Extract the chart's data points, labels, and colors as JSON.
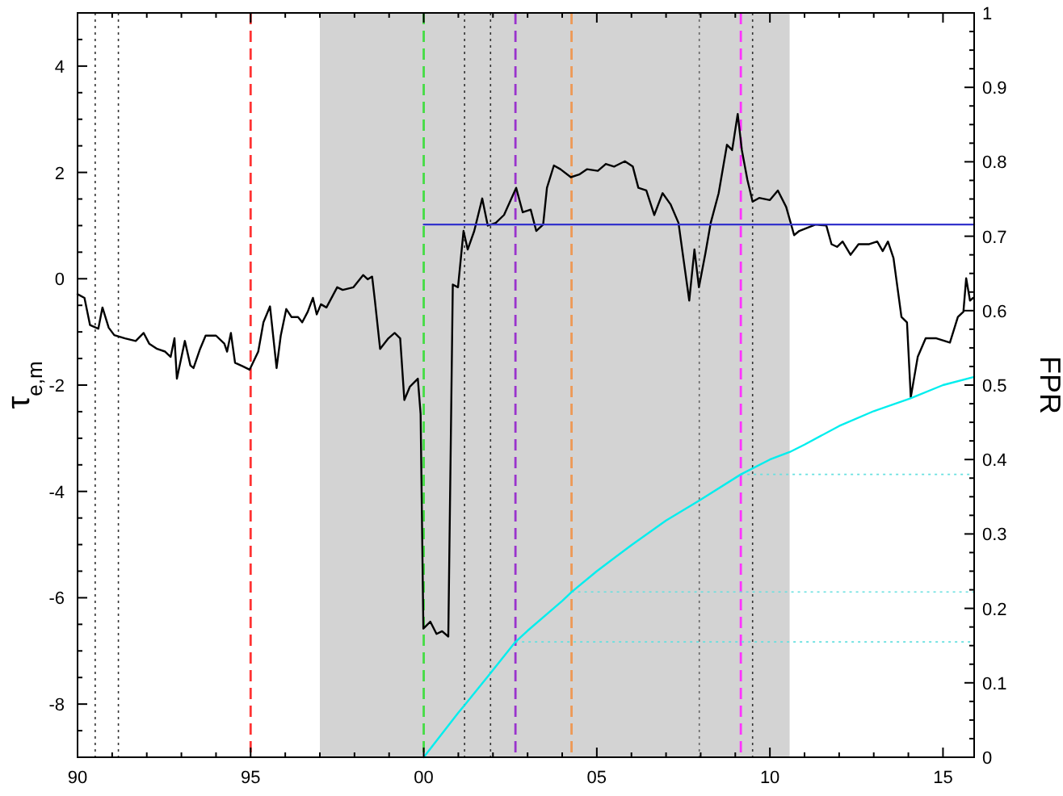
{
  "chart_data": {
    "type": "line",
    "ylabel": "τ$_{e,m}$",
    "y2label": "FPR",
    "xlim": [
      1990,
      2015.9
    ],
    "ylim": [
      -9,
      5
    ],
    "y2lim": [
      0,
      1
    ],
    "xticks": [
      {
        "value": 1990,
        "label": "90"
      },
      {
        "value": 1991,
        "label": null
      },
      {
        "value": 1992,
        "label": null
      },
      {
        "value": 1993,
        "label": null
      },
      {
        "value": 1994,
        "label": null
      },
      {
        "value": 1995,
        "label": "95"
      },
      {
        "value": 1996,
        "label": null
      },
      {
        "value": 1997,
        "label": null
      },
      {
        "value": 1998,
        "label": null
      },
      {
        "value": 1999,
        "label": null
      },
      {
        "value": 2000,
        "label": "00"
      },
      {
        "value": 2001,
        "label": null
      },
      {
        "value": 2002,
        "label": null
      },
      {
        "value": 2003,
        "label": null
      },
      {
        "value": 2004,
        "label": null
      },
      {
        "value": 2005,
        "label": "05"
      },
      {
        "value": 2006,
        "label": null
      },
      {
        "value": 2007,
        "label": null
      },
      {
        "value": 2008,
        "label": null
      },
      {
        "value": 2009,
        "label": null
      },
      {
        "value": 2010,
        "label": "10"
      },
      {
        "value": 2011,
        "label": null
      },
      {
        "value": 2012,
        "label": null
      },
      {
        "value": 2013,
        "label": null
      },
      {
        "value": 2014,
        "label": null
      },
      {
        "value": 2015,
        "label": "15"
      }
    ],
    "yticks": [
      {
        "value": -9,
        "label": null
      },
      {
        "value": -8.5,
        "label": null
      },
      -8,
      {
        "value": -7.5,
        "label": null
      },
      {
        "value": -7,
        "label": null
      },
      {
        "value": -6.5,
        "label": null
      },
      -6,
      {
        "value": -5.5,
        "label": null
      },
      {
        "value": -5,
        "label": null
      },
      {
        "value": -4.5,
        "label": null
      },
      -4,
      {
        "value": -3.5,
        "label": null
      },
      {
        "value": -3,
        "label": null
      },
      {
        "value": -2.5,
        "label": null
      },
      -2,
      {
        "value": -1.5,
        "label": null
      },
      {
        "value": -1,
        "label": null
      },
      {
        "value": -0.5,
        "label": null
      },
      0,
      {
        "value": 0.5,
        "label": null
      },
      {
        "value": 1,
        "label": null
      },
      {
        "value": 1.5,
        "label": null
      },
      2,
      {
        "value": 2.5,
        "label": null
      },
      {
        "value": 3,
        "label": null
      },
      {
        "value": 3.5,
        "label": null
      },
      4,
      {
        "value": 4.5,
        "label": null
      },
      {
        "value": 5,
        "label": null
      }
    ],
    "y2ticks": [
      0,
      0.1,
      0.2,
      0.3,
      0.4,
      0.5,
      0.6,
      0.7,
      0.8,
      0.9,
      1
    ],
    "grid": false,
    "line_style": "solid",
    "marker": "none",
    "bands": [
      {
        "axis": "x",
        "from": 1997,
        "to": 2010.57,
        "color": "#d3d3d3"
      }
    ],
    "ref_lines": [
      {
        "axis": "x",
        "value": 1990.51,
        "color": "#333333",
        "line_style": "dotted"
      },
      {
        "axis": "x",
        "value": 1991.18,
        "color": "#333333",
        "line_style": "dotted"
      },
      {
        "axis": "x",
        "value": 1995,
        "color": "#ff3333",
        "line_style": "dashed"
      },
      {
        "axis": "x",
        "value": 2000,
        "color": "#44dd44",
        "line_style": "dashed"
      },
      {
        "axis": "x",
        "value": 2001.18,
        "color": "#333333",
        "line_style": "dotted"
      },
      {
        "axis": "x",
        "value": 2001.93,
        "color": "#333333",
        "line_style": "dotted"
      },
      {
        "axis": "x",
        "value": 2002.65,
        "color": "#9933cc",
        "line_style": "dashed"
      },
      {
        "axis": "x",
        "value": 2004.27,
        "color": "#ee9955",
        "line_style": "dashed"
      },
      {
        "axis": "x",
        "value": 2007.96,
        "color": "#666666",
        "line_style": "dotted"
      },
      {
        "axis": "x",
        "value": 2009.16,
        "color": "#ff33ff",
        "line_style": "dashed"
      },
      {
        "axis": "x",
        "value": 2009.5,
        "color": "#333333",
        "line_style": "dotted"
      },
      {
        "axis": "y2",
        "value": 0.155,
        "color": "#66e0e0",
        "line_style": "dotted"
      },
      {
        "axis": "y2",
        "value": 0.222,
        "color": "#66e0e0",
        "line_style": "dotted"
      },
      {
        "axis": "y2",
        "value": 0.38,
        "color": "#66e0e0",
        "line_style": "dotted"
      }
    ],
    "series": [
      {
        "color": "#000000",
        "x": [
          1990.0,
          1990.2,
          1990.36,
          1990.6,
          1990.72,
          1990.9,
          1991.06,
          1991.37,
          1991.68,
          1991.91,
          1992.07,
          1992.3,
          1992.53,
          1992.69,
          1992.8,
          1992.87,
          1993.1,
          1993.26,
          1993.35,
          1993.54,
          1993.7,
          1994.0,
          1994.24,
          1994.32,
          1994.43,
          1994.55,
          1994.78,
          1994.97,
          1995.22,
          1995.37,
          1995.56,
          1995.75,
          1995.87,
          1996.03,
          1996.18,
          1996.37,
          1996.49,
          1996.65,
          1996.8,
          1996.91,
          1997.03,
          1997.19,
          1997.5,
          1997.66,
          1997.97,
          1998.25,
          1998.38,
          1998.51,
          1998.59,
          1998.74,
          1998.98,
          1999.16,
          1999.32,
          1999.44,
          1999.6,
          1999.83,
          1999.91,
          1999.99,
          2000.19,
          2000.37,
          2000.53,
          2000.71,
          2000.84,
          2000.99,
          2001.15,
          2001.27,
          2001.46,
          2001.69,
          2001.85,
          2002.08,
          2002.32,
          2002.67,
          2002.86,
          2003.09,
          2003.25,
          2003.45,
          2003.56,
          2003.76,
          2003.95,
          2004.25,
          2004.49,
          2004.72,
          2005.03,
          2005.26,
          2005.5,
          2005.81,
          2006.04,
          2006.2,
          2006.43,
          2006.66,
          2006.9,
          2007.13,
          2007.36,
          2007.51,
          2007.67,
          2007.82,
          2007.95,
          2008.14,
          2008.29,
          2008.52,
          2008.76,
          2008.91,
          2009.07,
          2009.19,
          2009.35,
          2009.5,
          2009.69,
          2010.0,
          2010.23,
          2010.47,
          2010.7,
          2010.85,
          2011.32,
          2011.63,
          2011.78,
          2011.94,
          2012.1,
          2012.33,
          2012.56,
          2012.87,
          2013.1,
          2013.26,
          2013.41,
          2013.57,
          2013.8,
          2013.96,
          2014.07,
          2014.27,
          2014.5,
          2014.81,
          2015.2,
          2015.43,
          2015.59,
          2015.67,
          2015.78,
          2015.87
        ],
        "values": [
          -0.29,
          -0.36,
          -0.87,
          -0.94,
          -0.54,
          -0.92,
          -1.06,
          -1.12,
          -1.17,
          -1.02,
          -1.22,
          -1.32,
          -1.37,
          -1.47,
          -1.12,
          -1.88,
          -1.17,
          -1.63,
          -1.68,
          -1.32,
          -1.07,
          -1.07,
          -1.22,
          -1.37,
          -1.02,
          -1.58,
          -1.65,
          -1.71,
          -1.37,
          -0.82,
          -0.52,
          -1.68,
          -1.07,
          -0.57,
          -0.72,
          -0.72,
          -0.82,
          -0.62,
          -0.36,
          -0.67,
          -0.48,
          -0.54,
          -0.16,
          -0.21,
          -0.16,
          0.07,
          -0.01,
          0.04,
          -0.41,
          -1.32,
          -1.12,
          -1.02,
          -1.12,
          -2.28,
          -2.03,
          -1.88,
          -2.54,
          -6.58,
          -6.45,
          -6.68,
          -6.63,
          -6.73,
          -0.11,
          -0.16,
          0.9,
          0.55,
          0.9,
          1.51,
          1.0,
          1.05,
          1.2,
          1.71,
          1.25,
          1.3,
          0.9,
          1.02,
          1.71,
          2.13,
          2.06,
          1.91,
          1.96,
          2.06,
          2.03,
          2.16,
          2.11,
          2.21,
          2.11,
          1.71,
          1.66,
          1.2,
          1.61,
          1.4,
          1.05,
          0.34,
          -0.41,
          0.55,
          -0.16,
          0.49,
          1.05,
          1.61,
          2.52,
          2.42,
          3.1,
          2.42,
          1.86,
          1.45,
          1.52,
          1.48,
          1.66,
          1.35,
          0.82,
          0.9,
          1.02,
          1.0,
          0.65,
          0.6,
          0.7,
          0.45,
          0.65,
          0.65,
          0.7,
          0.52,
          0.7,
          0.39,
          -0.72,
          -0.82,
          -2.23,
          -1.47,
          -1.12,
          -1.12,
          -1.2,
          -0.72,
          -0.62,
          0.01,
          -0.41,
          -0.36
        ]
      },
      {
        "color": "#3333cc",
        "x": [
          2000,
          2015.9
        ],
        "values": [
          1.02,
          1.02
        ]
      },
      {
        "axis": "y2",
        "color": "#00eeee",
        "x": [
          2000,
          2001,
          2001.18,
          2001.93,
          2002.65,
          2003,
          2004,
          2004.27,
          2005,
          2006,
          2007,
          2007.96,
          2009.16,
          2010,
          2010.57,
          2011,
          2012,
          2013,
          2014.05,
          2015,
          2015.9
        ],
        "values": [
          0,
          0.06,
          0.07,
          0.113,
          0.155,
          0.17,
          0.21,
          0.222,
          0.25,
          0.285,
          0.318,
          0.345,
          0.38,
          0.4,
          0.41,
          0.42,
          0.445,
          0.465,
          0.482,
          0.5,
          0.511
        ]
      }
    ]
  }
}
